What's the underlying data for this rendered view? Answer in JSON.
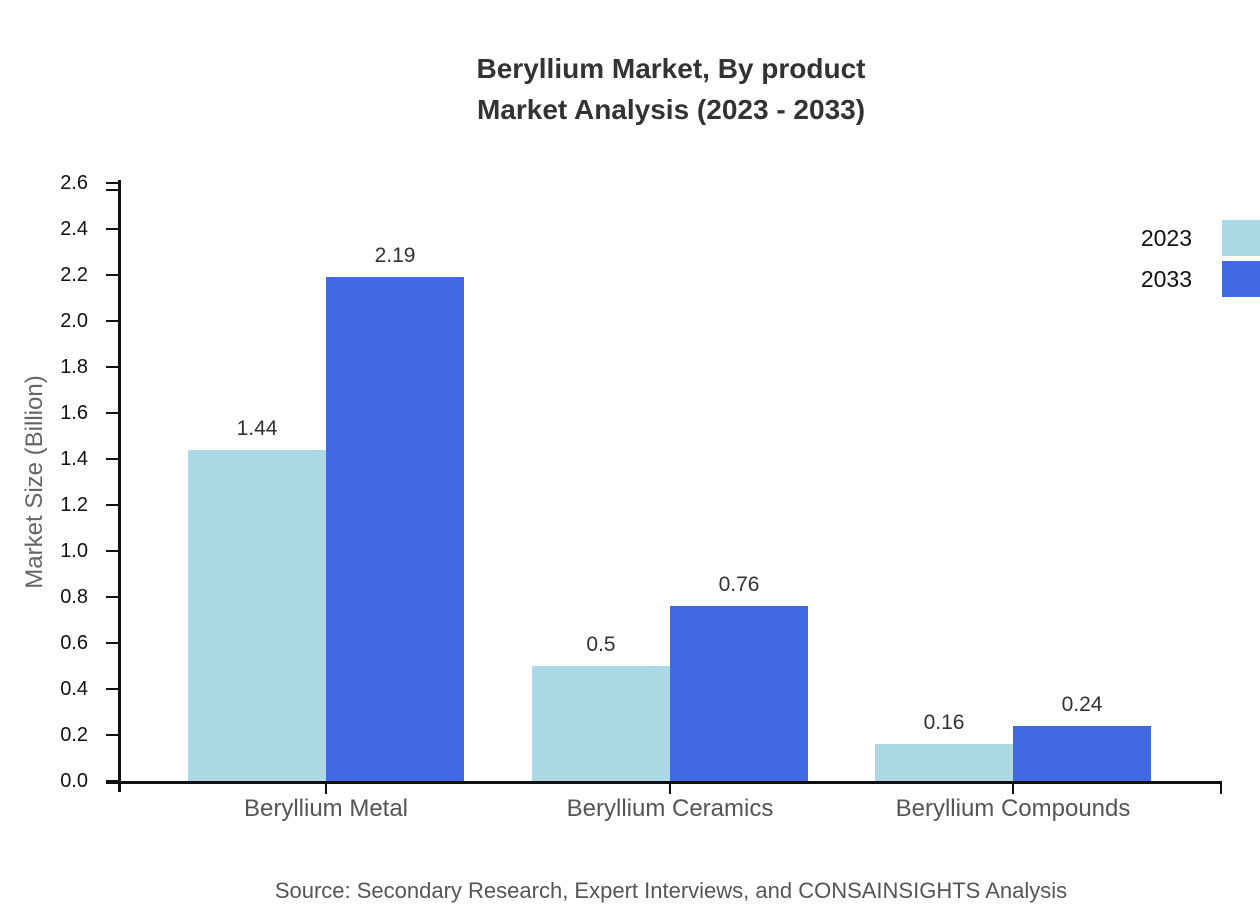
{
  "title": {
    "line1": "Beryllium Market, By product",
    "line2": "Market Analysis (2023 - 2033)"
  },
  "y_axis": {
    "label": "Market Size (Billion)",
    "ticks": [
      "0.0",
      "0.2",
      "0.4",
      "0.6",
      "0.8",
      "1.0",
      "1.2",
      "1.4",
      "1.6",
      "1.8",
      "2.0",
      "2.2",
      "2.4",
      "2.6"
    ]
  },
  "x_axis": {
    "categories": [
      "Beryllium Metal",
      "Beryllium Ceramics",
      "Beryllium Compounds"
    ]
  },
  "legend": {
    "items": [
      {
        "label": "2023",
        "color": "#ADD8E6"
      },
      {
        "label": "2033",
        "color": "#4169E1"
      }
    ]
  },
  "source": "Source: Secondary Research, Expert Interviews, and CONSAINSIGHTS Analysis",
  "chart_data": {
    "type": "bar",
    "title": "Beryllium Market, By product Market Analysis (2023 - 2033)",
    "categories": [
      "Beryllium Metal",
      "Beryllium Ceramics",
      "Beryllium Compounds"
    ],
    "series": [
      {
        "name": "2023",
        "color": "#ADD8E6",
        "values": [
          1.44,
          0.5,
          0.16
        ],
        "labels": [
          "1.44",
          "0.5",
          "0.16"
        ]
      },
      {
        "name": "2033",
        "color": "#4169E1",
        "values": [
          2.19,
          0.76,
          0.24
        ],
        "labels": [
          "2.19",
          "0.76",
          "0.24"
        ]
      }
    ],
    "xlabel": "",
    "ylabel": "Market Size (Billion)",
    "ylim": [
      0,
      2.6
    ],
    "ytick_step": 0.2,
    "grid": false,
    "legend_position": "right-outside-top",
    "axis_color": "#111111",
    "value_label_color": "#333333"
  }
}
